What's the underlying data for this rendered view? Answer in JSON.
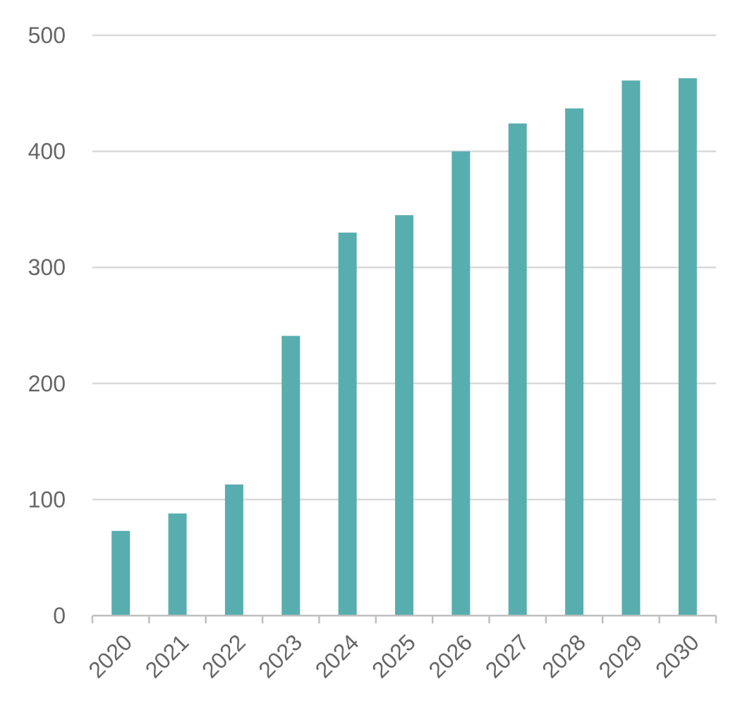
{
  "chart_data": {
    "type": "bar",
    "title": "",
    "xlabel": "",
    "ylabel": "",
    "categories": [
      "2020",
      "2021",
      "2022",
      "2023",
      "2024",
      "2025",
      "2026",
      "2027",
      "2028",
      "2029",
      "2030"
    ],
    "values": [
      73,
      88,
      113,
      241,
      330,
      345,
      400,
      424,
      437,
      461,
      463
    ],
    "ylim": [
      0,
      500
    ],
    "yticks": [
      "0",
      "100",
      "200",
      "300",
      "400",
      "500"
    ],
    "grid": true,
    "legend": "none",
    "colors": {
      "bar": "#58AEAF",
      "grid": "#d9d9d9",
      "axis": "#bfbfbf",
      "tick_text": "#666666"
    }
  }
}
